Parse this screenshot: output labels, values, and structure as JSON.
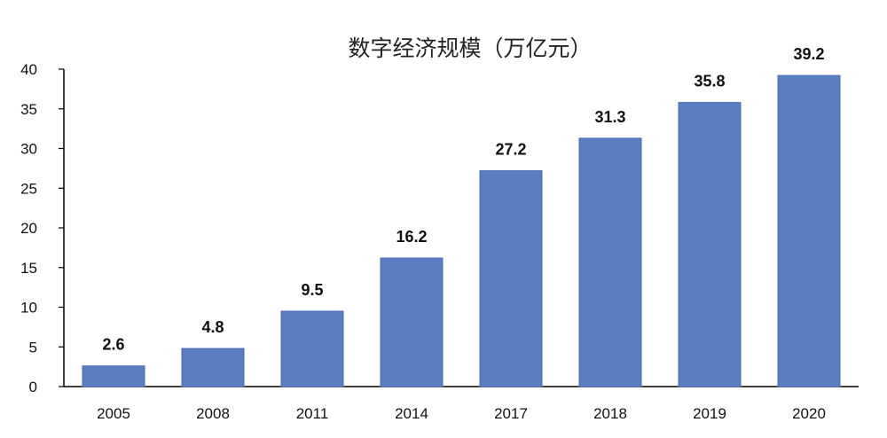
{
  "chart_data": {
    "type": "bar",
    "title": "数字经济规模（万亿元）",
    "xlabel": "",
    "ylabel": "",
    "categories": [
      "2005",
      "2008",
      "2011",
      "2014",
      "2017",
      "2018",
      "2019",
      "2020"
    ],
    "values": [
      2.6,
      4.8,
      9.5,
      16.2,
      27.2,
      31.3,
      35.8,
      39.2
    ],
    "data_labels": [
      "2.6",
      "4.8",
      "9.5",
      "16.2",
      "27.2",
      "31.3",
      "35.8",
      "39.2"
    ],
    "ylim": [
      0,
      40
    ],
    "yticks": [
      0,
      5,
      10,
      15,
      20,
      25,
      30,
      35,
      40
    ],
    "ytick_labels": [
      "0",
      "5",
      "10",
      "15",
      "20",
      "25",
      "30",
      "35",
      "40"
    ],
    "grid": false,
    "legend": "none",
    "colors": {
      "bar": "#5b7dc4",
      "bar_edge": "#4a6bb3"
    }
  }
}
